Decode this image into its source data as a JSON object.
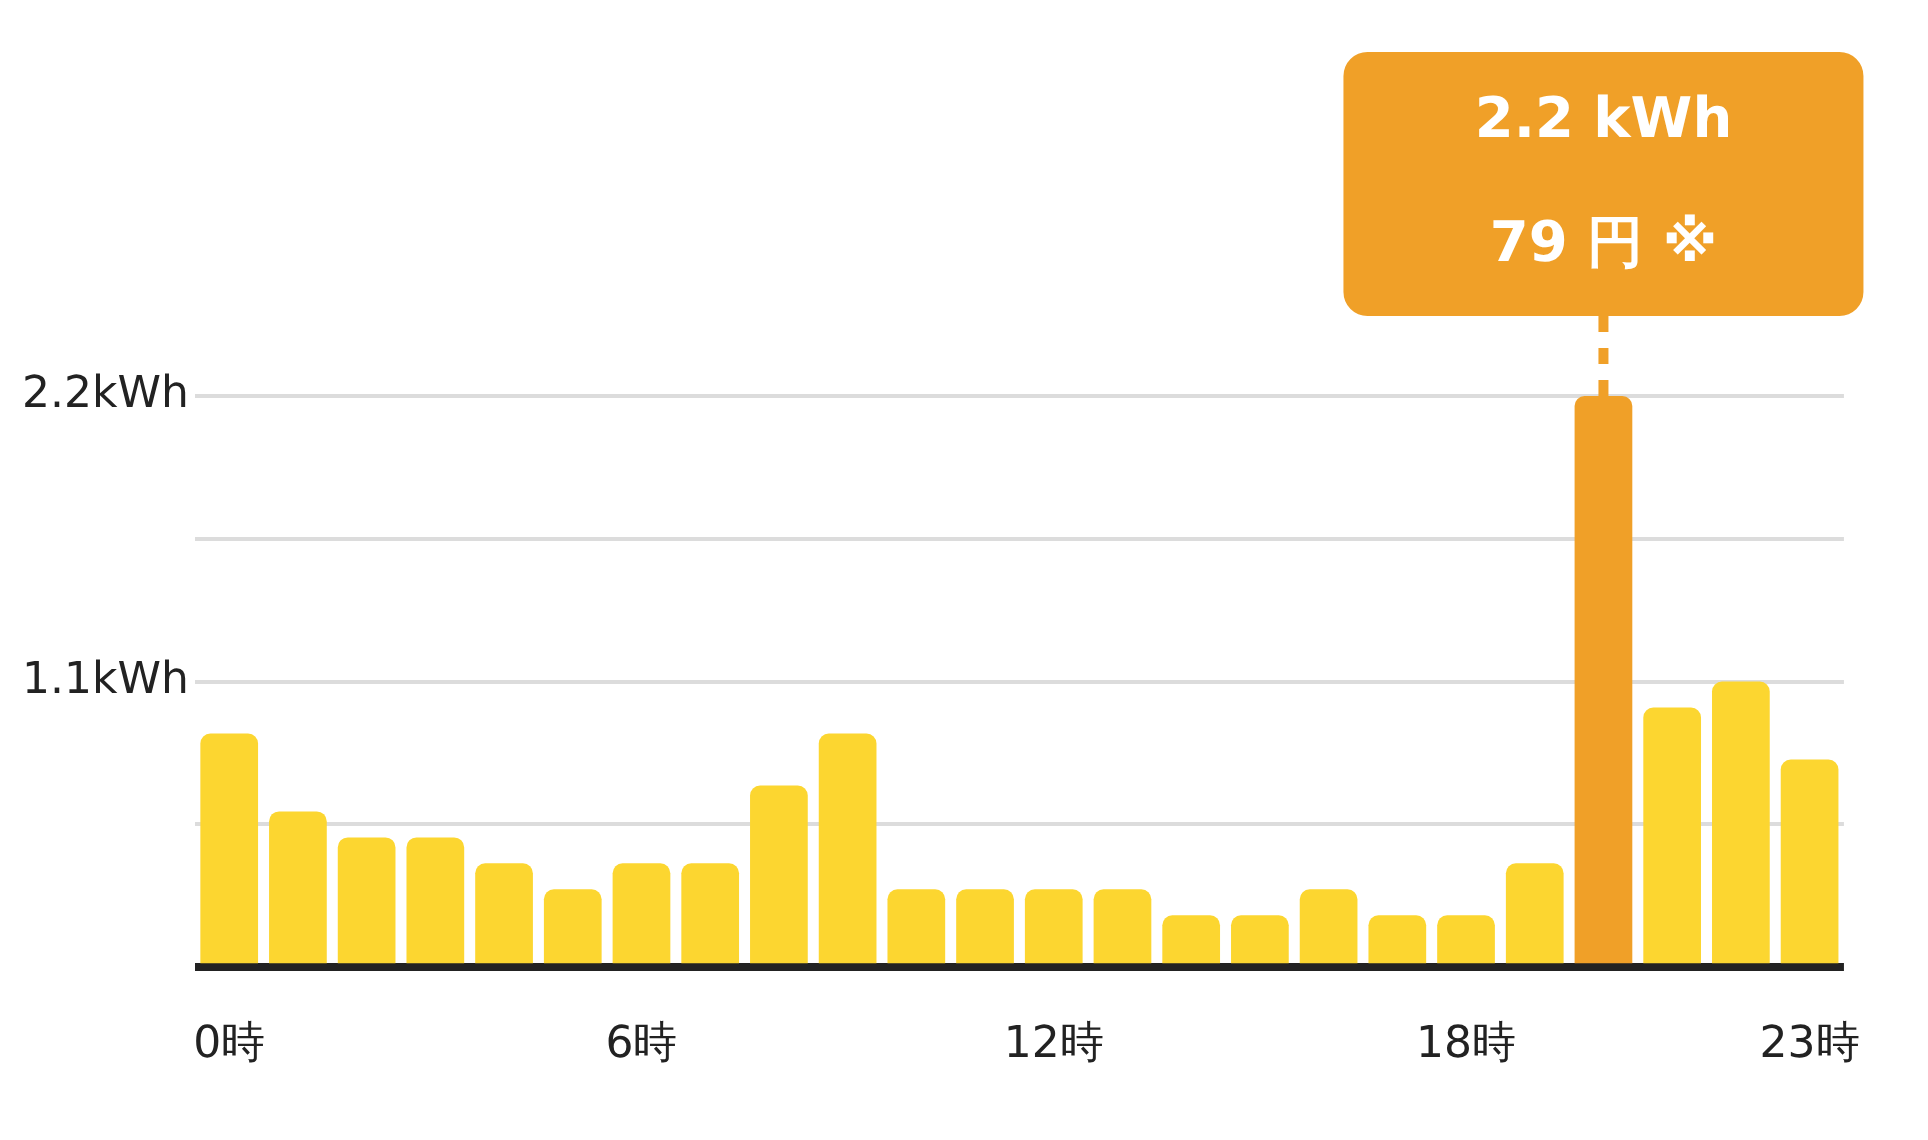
{
  "chart_data": {
    "type": "bar",
    "categories": [
      "0時",
      null,
      null,
      null,
      null,
      null,
      "6時",
      null,
      null,
      null,
      null,
      null,
      "12時",
      null,
      null,
      null,
      null,
      null,
      "18時",
      null,
      null,
      null,
      null,
      "23時"
    ],
    "values": [
      0.9,
      0.6,
      0.5,
      0.5,
      0.4,
      0.3,
      0.4,
      0.4,
      0.7,
      0.9,
      0.3,
      0.3,
      0.3,
      0.3,
      0.2,
      0.2,
      0.3,
      0.2,
      0.2,
      0.4,
      2.2,
      1.0,
      1.1,
      0.8
    ],
    "colors": [
      "#fcd630",
      "#fcd630",
      "#fcd630",
      "#fcd630",
      "#fcd630",
      "#fcd630",
      "#fcd630",
      "#fcd630",
      "#fcd630",
      "#fcd630",
      "#fcd630",
      "#fcd630",
      "#fcd630",
      "#fcd630",
      "#fcd630",
      "#fcd630",
      "#fcd630",
      "#fcd630",
      "#fcd630",
      "#fcd630",
      "#f0a028",
      "#fcd630",
      "#fcd630",
      "#fcd630"
    ],
    "ylim": [
      0,
      2.2
    ],
    "yticks": [
      {
        "value": 0,
        "label": null
      },
      {
        "value": 0.55,
        "label": null
      },
      {
        "value": 1.1,
        "label": "1.1kWh"
      },
      {
        "value": 1.65,
        "label": null
      },
      {
        "value": 2.2,
        "label": "2.2kWh"
      }
    ],
    "grid": "y",
    "annotations": [
      "2.2 kWh",
      "79 円 ※"
    ]
  }
}
